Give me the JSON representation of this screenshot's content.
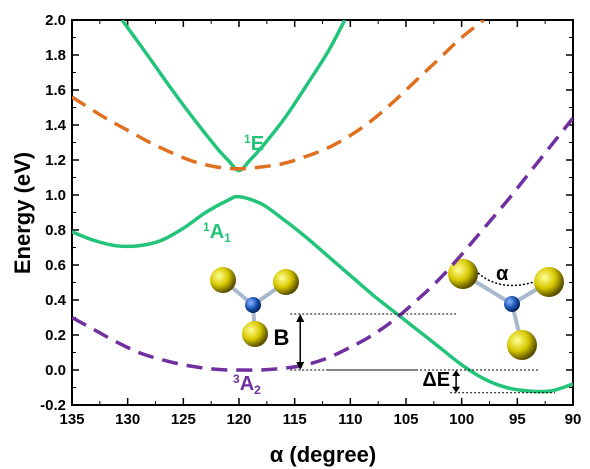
{
  "chart_data": {
    "type": "line",
    "xlabel": "α (degree)",
    "ylabel": "Energy (eV)",
    "xlim": [
      135,
      90
    ],
    "ylim": [
      -0.2,
      2.0
    ],
    "x_reversed": true,
    "xticks": [
      "135",
      "130",
      "125",
      "120",
      "115",
      "110",
      "105",
      "100",
      "95",
      "90"
    ],
    "yticks": [
      "-0.2",
      "0.0",
      "0.2",
      "0.4",
      "0.6",
      "0.8",
      "1.0",
      "1.2",
      "1.4",
      "1.6",
      "1.8",
      "2.0"
    ],
    "grid": false,
    "series": [
      {
        "name": "1E",
        "color": "#22c47a",
        "dash": "solid",
        "x": [
          130.5,
          128,
          126,
          124,
          122,
          121,
          120,
          119,
          118,
          116,
          114,
          112,
          110.5
        ],
        "y": [
          2.0,
          1.78,
          1.6,
          1.43,
          1.27,
          1.2,
          1.14,
          1.2,
          1.27,
          1.43,
          1.62,
          1.82,
          2.0
        ]
      },
      {
        "name": "",
        "color": "#e07020",
        "dash": "dashed",
        "x": [
          135,
          132,
          130,
          128,
          126,
          124,
          122,
          120,
          118,
          116,
          114,
          112,
          110,
          108,
          106,
          104,
          102,
          100,
          98
        ],
        "y": [
          1.56,
          1.44,
          1.37,
          1.3,
          1.24,
          1.19,
          1.16,
          1.15,
          1.16,
          1.18,
          1.22,
          1.27,
          1.34,
          1.43,
          1.54,
          1.66,
          1.78,
          1.9,
          2.0
        ]
      },
      {
        "name": "1A1",
        "color": "#22c47a",
        "dash": "solid",
        "x": [
          135,
          133,
          131,
          129,
          127,
          125,
          123,
          121,
          120,
          118,
          116,
          114,
          112,
          110,
          108,
          106,
          104,
          102,
          100,
          98,
          96,
          94,
          92,
          90
        ],
        "y": [
          0.79,
          0.74,
          0.71,
          0.71,
          0.74,
          0.81,
          0.9,
          0.97,
          0.99,
          0.95,
          0.86,
          0.76,
          0.65,
          0.54,
          0.43,
          0.33,
          0.23,
          0.13,
          0.03,
          -0.05,
          -0.1,
          -0.12,
          -0.12,
          -0.08
        ]
      },
      {
        "name": "3A2",
        "color": "#7030a0",
        "dash": "dashed",
        "x": [
          135,
          133,
          131,
          129,
          127,
          125,
          123,
          121,
          120,
          118,
          116,
          114,
          112,
          110,
          108,
          106,
          104,
          102,
          100,
          98,
          96,
          94,
          92,
          90
        ],
        "y": [
          0.3,
          0.23,
          0.16,
          0.1,
          0.06,
          0.03,
          0.01,
          0.0,
          0.0,
          0.0,
          0.01,
          0.03,
          0.07,
          0.13,
          0.2,
          0.29,
          0.4,
          0.52,
          0.66,
          0.81,
          0.96,
          1.12,
          1.28,
          1.44
        ]
      }
    ],
    "labels": [
      {
        "text": "1E",
        "sup": "1",
        "main": "E",
        "sub": "",
        "color": "#22c47a"
      },
      {
        "text": "1A1",
        "sup": "1",
        "main": "A",
        "sub": "1",
        "color": "#22c47a"
      },
      {
        "text": "3A2",
        "sup": "3",
        "main": "A",
        "sub": "2",
        "color": "#7030a0"
      },
      {
        "text": "B",
        "color": "#000000"
      },
      {
        "text": "ΔE",
        "color": "#000000"
      },
      {
        "text": "α",
        "color": "#000000"
      }
    ],
    "annotations": {
      "B": {
        "x_text": 116,
        "x_arrow": 114.5,
        "from_y": 0.0,
        "to_y": 0.32
      },
      "deltaE": {
        "x_arrow": 100.5,
        "from_y": -0.13,
        "to_y": 0.0
      }
    },
    "molecule_colors": {
      "outer_atom": "#d8c800",
      "center_atom": "#1a55b5",
      "bond": "#a9b8cc"
    }
  }
}
